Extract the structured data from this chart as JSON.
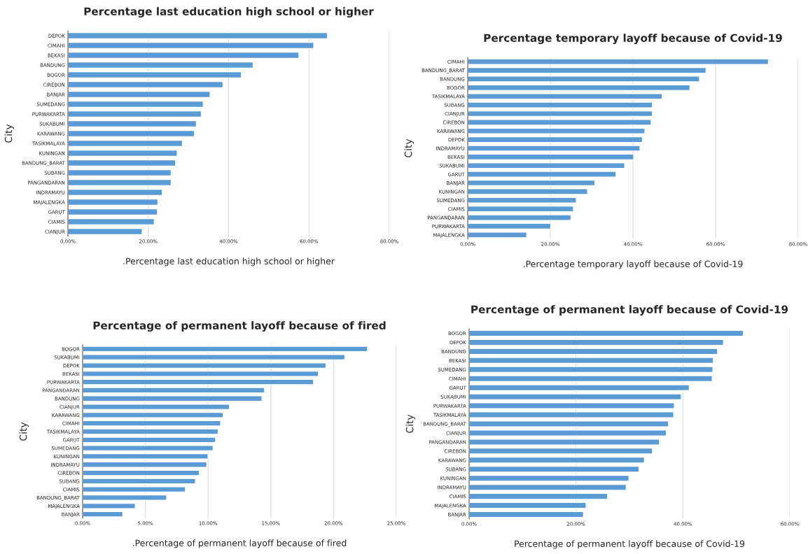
{
  "chart_data": [
    {
      "type": "bar",
      "orientation": "horizontal",
      "title": "Percentage last education high school or higher",
      "xlabel": ".Percentage last education high school or higher",
      "ylabel": "City",
      "color": "#5b9bd5",
      "grid": "x",
      "categories": [
        "DEPOK",
        "CIMAHI",
        "BEKASI",
        "BANDUNG",
        "BOGOR",
        "CIREBON",
        "BANJAR",
        "SUMEDANG",
        "PURWAKARTA",
        "SUKABUMI",
        "KARAWANG",
        "TASIKMALAYA",
        "KUNINGAN",
        "BANDUNG_BARAT",
        "SUBANG",
        "PANGANDARAN",
        "INDRAMAYU",
        "MAJALENGKA",
        "GARUT",
        "CIAMIS",
        "CIANJUR"
      ],
      "values": [
        64.6,
        61.2,
        57.5,
        46.1,
        43.2,
        38.6,
        35.4,
        33.7,
        33.2,
        32.0,
        31.5,
        28.5,
        27.2,
        26.8,
        25.7,
        25.7,
        23.5,
        22.4,
        22.3,
        21.5,
        18.5
      ],
      "xlim": [
        0,
        80
      ],
      "xticks": [
        {
          "value": 0,
          "label": "0.00%"
        },
        {
          "value": 20,
          "label": "20.00%"
        },
        {
          "value": 40,
          "label": "40.00%"
        },
        {
          "value": 60,
          "label": "60.00%"
        },
        {
          "value": 80,
          "label": "80.00%"
        }
      ]
    },
    {
      "type": "bar",
      "orientation": "horizontal",
      "title": "Percentage temporary layoff because of Covid-19",
      "xlabel": ".Percentage temporary layoff because of Covid-19",
      "ylabel": "City",
      "color": "#5b9bd5",
      "grid": "x",
      "categories": [
        "CIMAHI",
        "BANDUNG_BARAT",
        "BANDUNG",
        "BOGOR",
        "TASIKMALAYA",
        "SUBANG",
        "CIANJUR",
        "CIREBON",
        "KARAWANG",
        "DEPOK",
        "INDRAMAYU",
        "BEKASI",
        "SUKABUMI",
        "GARUT",
        "BANJAR",
        "KUNINGAN",
        "SUMEDANG",
        "CIAMIS",
        "PANGANDARAN",
        "PURWAKARTA",
        "MAJALENGKA"
      ],
      "values": [
        72.8,
        57.7,
        56.1,
        53.8,
        47.1,
        44.7,
        44.7,
        44.4,
        42.9,
        42.3,
        41.7,
        40.2,
        38.0,
        35.9,
        30.8,
        29.0,
        26.3,
        25.6,
        25.0,
        20.1,
        14.3
      ],
      "xlim": [
        0,
        80
      ],
      "xticks": [
        {
          "value": 0,
          "label": "0.00%"
        },
        {
          "value": 20,
          "label": "20.00%"
        },
        {
          "value": 40,
          "label": "40.00%"
        },
        {
          "value": 60,
          "label": "60.00%"
        },
        {
          "value": 80,
          "label": "80.00%"
        }
      ]
    },
    {
      "type": "bar",
      "orientation": "horizontal",
      "title": "Percentage of permanent layoff because of fired",
      "xlabel": ".Percentage of permanent layoff because of fired",
      "ylabel": "City",
      "color": "#5b9bd5",
      "grid": "x",
      "categories": [
        "BOGOR",
        "SUKABUMI",
        "DEPOK",
        "BEKASI",
        "PURWAKARTA",
        "PANGANDARAN",
        "BANDUNG",
        "CIANJUR",
        "KARAWANG",
        "CIMAHI",
        "TASIKMALAYA",
        "GARUT",
        "SUMEDANG",
        "KUNINGAN",
        "INDRAMAYU",
        "CIREBON",
        "SUBANG",
        "CIAMIS",
        "BANDUNG_BARAT",
        "MAJALENGKA",
        "BANJAR"
      ],
      "values": [
        22.7,
        20.9,
        19.4,
        18.8,
        18.4,
        14.5,
        14.3,
        11.7,
        11.2,
        11.0,
        10.8,
        10.6,
        10.4,
        10.0,
        9.9,
        9.3,
        9.0,
        8.2,
        6.7,
        4.2,
        3.2
      ],
      "xlim": [
        0,
        25
      ],
      "xticks": [
        {
          "value": 0,
          "label": "0.00%"
        },
        {
          "value": 5,
          "label": "5.00%"
        },
        {
          "value": 10,
          "label": "10.00%"
        },
        {
          "value": 15,
          "label": "15.00%"
        },
        {
          "value": 20,
          "label": "20.00%"
        },
        {
          "value": 25,
          "label": "25.00%"
        }
      ]
    },
    {
      "type": "bar",
      "orientation": "horizontal",
      "title": "Percentage of permanent layoff because of Covid-19",
      "xlabel": "Percentage of permanent layoff because of Covid-19",
      "ylabel": "City",
      "color": "#5b9bd5",
      "grid": "x",
      "categories": [
        "BOGOR",
        "DEPOK",
        "BANDUNG",
        "BEKASI",
        "SUMEDANG",
        "CIMAHI",
        "GARUT",
        "SUKABUMI",
        "PURWAKARTA",
        "TASIKMALAYA",
        "BANDUNG_BARAT",
        "CIANJUR",
        "PANGANDARAN",
        "CIREBON",
        "KARAWANG",
        "SUBANG",
        "KUNINGAN",
        "INDRAMAYU",
        "CIAMIS",
        "MAJALENGKA",
        "BANJAR"
      ],
      "values": [
        51.3,
        47.6,
        46.5,
        45.7,
        45.6,
        45.5,
        41.2,
        39.7,
        38.4,
        38.3,
        37.3,
        36.9,
        35.6,
        34.3,
        32.8,
        31.8,
        29.9,
        29.4,
        25.9,
        21.9,
        21.4
      ],
      "xlim": [
        0,
        60
      ],
      "xticks": [
        {
          "value": 0,
          "label": "0.00%"
        },
        {
          "value": 20,
          "label": "20.00%"
        },
        {
          "value": 40,
          "label": "40.00%"
        },
        {
          "value": 60,
          "label": "60.00%"
        }
      ]
    }
  ]
}
